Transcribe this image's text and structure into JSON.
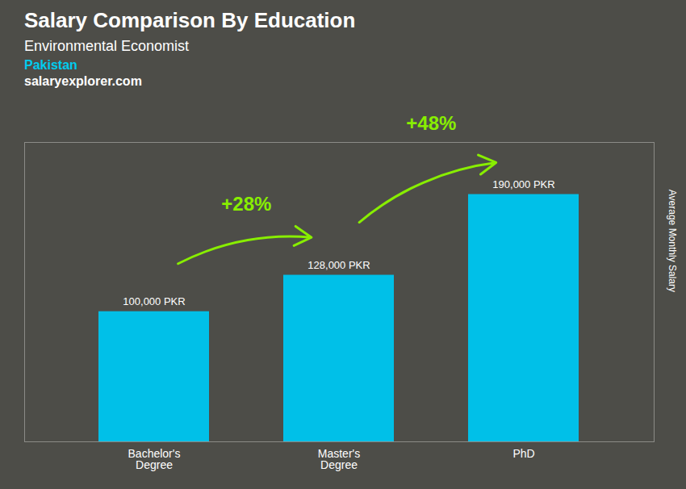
{
  "chart_data": {
    "type": "bar",
    "title": "Salary Comparison By Education",
    "subtitle": "Environmental Economist",
    "ylabel": "Average Monthly Salary",
    "categories": [
      "Bachelor's\nDegree",
      "Master's\nDegree",
      "PhD"
    ],
    "values": [
      100000,
      128000,
      190000
    ],
    "value_labels": [
      "100,000 PKR",
      "128,000 PKR",
      "190,000 PKR"
    ],
    "data_labels": true,
    "color": "#00c0e8",
    "ylim": [
      0,
      230000
    ],
    "tick_labels": "x",
    "grid": false,
    "annotations": [
      {
        "text": "Pakistan",
        "color": "#00ccee"
      },
      {
        "text": "salaryexplorer.com",
        "color": "#ffffff"
      },
      {
        "text": "+28%",
        "color": "#88ee00",
        "between": [
          0,
          1
        ]
      },
      {
        "text": "+48%",
        "color": "#88ee00",
        "between": [
          1,
          2
        ]
      }
    ]
  }
}
